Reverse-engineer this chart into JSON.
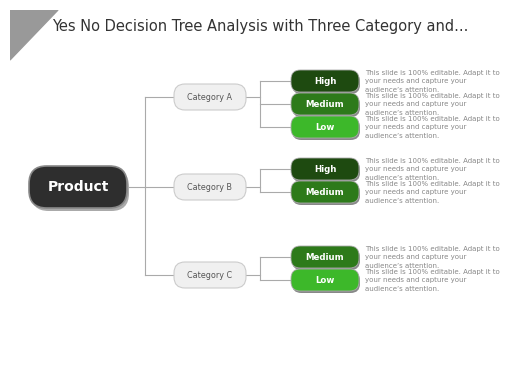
{
  "title": "Yes No Decision Tree Analysis with Three Category and...",
  "background_color": "#ffffff",
  "title_fontsize": 10.5,
  "root_label": "Product",
  "root_color": "#2e2e2e",
  "root_text_color": "#ffffff",
  "root_shadow_color": "#bbbbbb",
  "categories": [
    "Category A",
    "Category B",
    "Category C"
  ],
  "cat_color": "#f0f0f0",
  "cat_border_color": "#cccccc",
  "cat_text_color": "#555555",
  "leaves": [
    [
      "High",
      "Medium",
      "Low"
    ],
    [
      "High",
      "Medium"
    ],
    [
      "Medium",
      "Low"
    ]
  ],
  "leaf_colors": {
    "High_dark": "#1e4a10",
    "High_light": "#2d6e1a",
    "Medium_dark": "#2d6e1a",
    "Medium_light": "#3d9e2a",
    "Low_dark": "#3d9e2a",
    "Low_light": "#4fc830"
  },
  "leaf_color_map": {
    "High": "#1e4a10",
    "Medium": "#2d7a1a",
    "Low": "#3db82a"
  },
  "leaf_border_color": "#aaaaaa",
  "leaf_text_color": "#ffffff",
  "annotation_text": "This slide is 100% editable. Adapt it to\nyour needs and capture your\naudience’s attention.",
  "annotation_color": "#888888",
  "annotation_fontsize": 5.0,
  "title_color": "#333333",
  "corner_triangle_color": "#999999",
  "line_color": "#aaaaaa",
  "line_lw": 0.8
}
